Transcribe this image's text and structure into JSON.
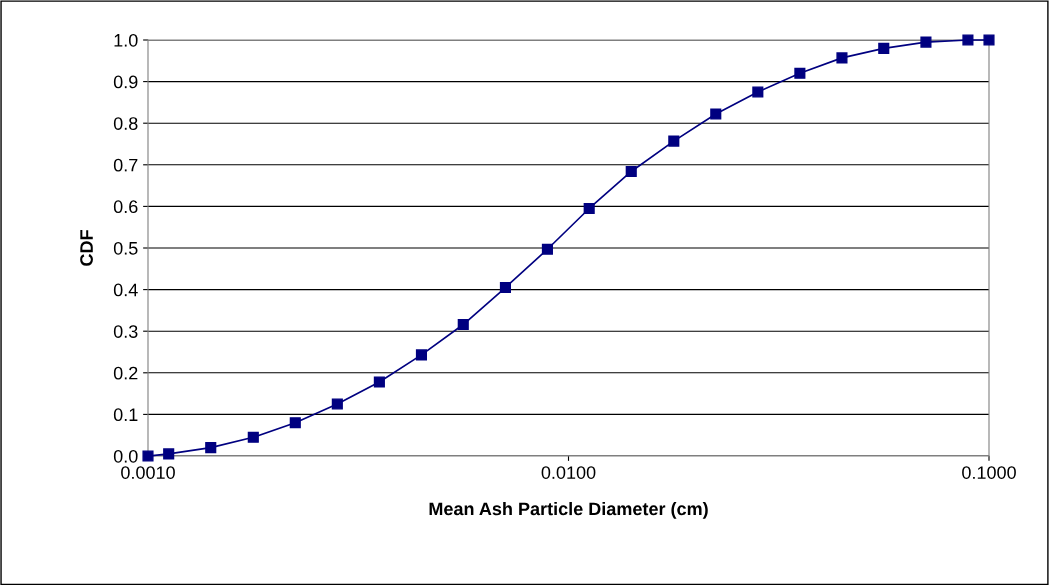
{
  "chart_data": {
    "type": "line",
    "xlabel": "Mean Ash Particle Diameter (cm)",
    "ylabel": "CDF",
    "x": [
      0.001,
      0.00112,
      0.00141,
      0.00178,
      0.00224,
      0.00282,
      0.00355,
      0.00447,
      0.00562,
      0.00708,
      0.00891,
      0.0112,
      0.0141,
      0.0178,
      0.0224,
      0.0282,
      0.0355,
      0.0447,
      0.0562,
      0.0708,
      0.0891,
      0.1
    ],
    "series": [
      {
        "color": "#000080",
        "values": [
          0.0,
          0.005,
          0.02,
          0.045,
          0.08,
          0.125,
          0.178,
          0.243,
          0.316,
          0.405,
          0.497,
          0.595,
          0.684,
          0.757,
          0.822,
          0.875,
          0.92,
          0.957,
          0.98,
          0.995,
          1.0,
          1.0
        ]
      }
    ],
    "log": "x",
    "xlim": [
      0.001,
      0.1
    ],
    "xticks": [
      {
        "value": 0.001,
        "label": "0.0010"
      },
      {
        "value": 0.01,
        "label": "0.0100"
      },
      {
        "value": 0.1,
        "label": "0.1000"
      }
    ],
    "ylim": [
      0,
      1
    ],
    "yticks": [
      {
        "value": 0,
        "label": "0.0"
      },
      {
        "value": 0.1,
        "label": "0.1"
      },
      {
        "value": 0.2,
        "label": "0.2"
      },
      {
        "value": 0.3,
        "label": "0.3"
      },
      {
        "value": 0.4,
        "label": "0.4"
      },
      {
        "value": 0.5,
        "label": "0.5"
      },
      {
        "value": 0.6,
        "label": "0.6"
      },
      {
        "value": 0.7,
        "label": "0.7"
      },
      {
        "value": 0.8,
        "label": "0.8"
      },
      {
        "value": 0.9,
        "label": "0.9"
      },
      {
        "value": 1.0,
        "label": "1.0"
      }
    ],
    "grid": "y",
    "marker": "square",
    "line_style": "solid",
    "legend": false
  }
}
